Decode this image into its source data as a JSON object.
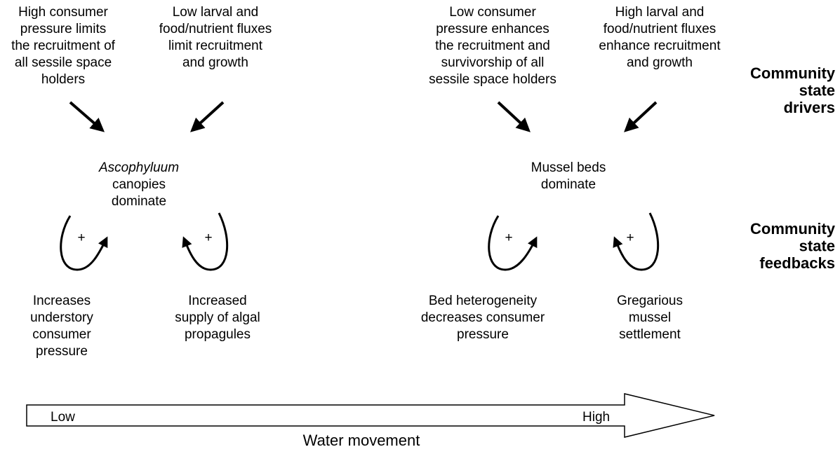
{
  "drivers": [
    {
      "lines": [
        "High consumer",
        "pressure limits",
        "the recruitment of",
        "all sessile space",
        "holders"
      ]
    },
    {
      "lines": [
        "Low larval and",
        "food/nutrient fluxes",
        "limit recruitment",
        "and growth"
      ]
    },
    {
      "lines": [
        "Low consumer",
        "pressure enhances",
        "the recruitment and",
        "survivorship of all",
        "sessile space holders"
      ]
    },
    {
      "lines": [
        "High larval and",
        "food/nutrient fluxes",
        "enhance recruitment",
        "and growth"
      ]
    }
  ],
  "states": [
    {
      "name": "Ascophyluum",
      "lines": [
        "canopies",
        "dominate"
      ]
    },
    {
      "lines": [
        "Mussel beds",
        "dominate"
      ]
    }
  ],
  "feedbacks": [
    {
      "sign": "+",
      "lines": [
        "Increases",
        "understory",
        "consumer",
        "pressure"
      ]
    },
    {
      "sign": "+",
      "lines": [
        "Increased",
        "supply of algal",
        "propagules"
      ]
    },
    {
      "sign": "+",
      "lines": [
        "Bed heterogeneity",
        "decreases consumer",
        "pressure"
      ]
    },
    {
      "sign": "+",
      "lines": [
        "Gregarious",
        "mussel",
        "settlement"
      ]
    }
  ],
  "side_labels": [
    {
      "lines": [
        "Community",
        "state",
        "drivers"
      ]
    },
    {
      "lines": [
        "Community",
        "state",
        "feedbacks"
      ]
    }
  ],
  "axis": {
    "low": "Low",
    "high": "High",
    "label": "Water movement"
  }
}
